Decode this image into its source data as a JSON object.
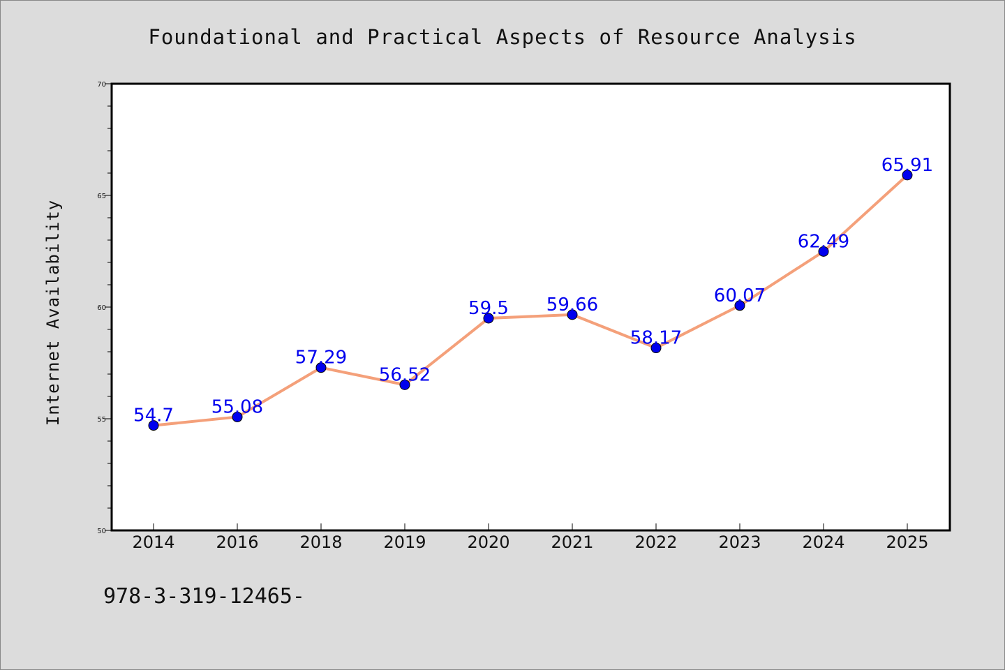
{
  "chart_data": {
    "type": "line",
    "title": "Foundational and Practical Aspects of Resource Analysis",
    "xlabel": "",
    "ylabel": "Internet Availability",
    "categories": [
      "2014",
      "2016",
      "2018",
      "2019",
      "2020",
      "2021",
      "2022",
      "2023",
      "2024",
      "2025"
    ],
    "series": [
      {
        "values": [
          54.7,
          55.08,
          57.29,
          56.52,
          59.5,
          59.66,
          58.17,
          60.07,
          62.49,
          65.91
        ],
        "data_labels": [
          "54.7",
          "55.08",
          "57.29",
          "56.52",
          "59.5",
          "59.66",
          "58.17",
          "60.07",
          "62.49",
          "65.91"
        ],
        "line_color": "#f4a07a",
        "marker_color": "#0000ee"
      }
    ],
    "ylim": [
      50,
      70
    ],
    "y_ticks": [
      "50",
      "55",
      "60",
      "65",
      "70"
    ],
    "grid": false,
    "label_color": "#0000ee"
  },
  "footer": {
    "text": "978-3-319-12465-"
  },
  "colors": {
    "background": "#dcdcdc",
    "plot_background": "#ffffff",
    "axis": "#000000"
  }
}
